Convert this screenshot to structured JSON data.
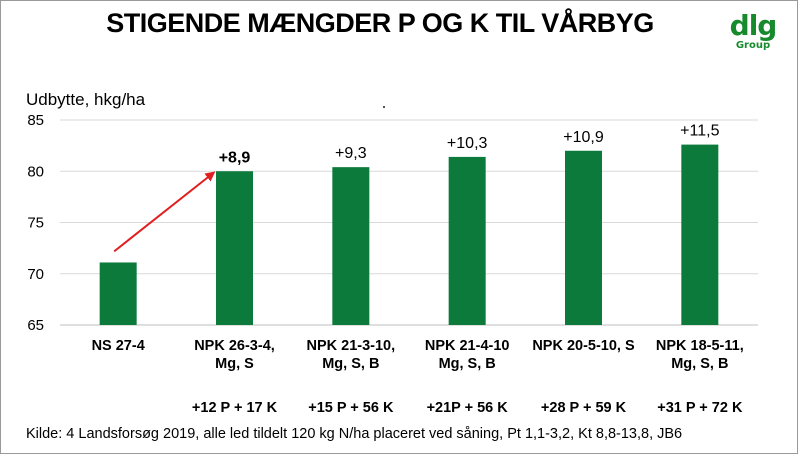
{
  "title": "STIGENDE MÆNGDER P OG K TIL VÅRBYG",
  "logo": {
    "mark": "dlg",
    "sub": "Group"
  },
  "footnote": "Kilde: 4 Landsforsøg 2019, alle led tildelt 120 kg N/ha placeret ved såning, Pt 1,1-3,2, Kt 8,8-13,8, JB6",
  "colors": {
    "bar": "#0b7a3b",
    "arrow": "#e02020",
    "grid": "#d9d9d9",
    "axis": "#bfbfbf"
  },
  "chart_data": {
    "type": "bar",
    "title": "STIGENDE MÆNGDER P OG K TIL VÅRBYG",
    "ylabel": "Udbytte, hkg/ha",
    "xlabel": "",
    "ylim": [
      65,
      85
    ],
    "yticks": [
      65,
      70,
      75,
      80,
      85
    ],
    "grid": true,
    "categories": [
      [
        "NS 27-4"
      ],
      [
        "NPK 26-3-4,",
        "Mg, S"
      ],
      [
        "NPK 21-3-10,",
        "Mg, S, B"
      ],
      [
        "NPK 21-4-10",
        "Mg, S, B"
      ],
      [
        "NPK 20-5-10, S"
      ],
      [
        "NPK 18-5-11,",
        "Mg, S, B"
      ]
    ],
    "values": [
      71.1,
      80.0,
      80.4,
      81.4,
      82.0,
      82.6
    ],
    "data_labels": [
      "",
      "+8,9",
      "+9,3",
      "+10,3",
      "+10,9",
      "+11,5"
    ],
    "data_label_bold": [
      false,
      true,
      false,
      false,
      false,
      false
    ],
    "sub_labels": [
      "",
      "+12 P + 17 K",
      "+15 P + 56 K",
      "+21P + 56 K",
      "+28 P + 59 K",
      "+31 P + 72 K"
    ],
    "annotations": [
      {
        "type": "arrow",
        "from_category": 0,
        "to_category": 1,
        "from_value": 71.6,
        "to_value": 80.0
      }
    ]
  }
}
